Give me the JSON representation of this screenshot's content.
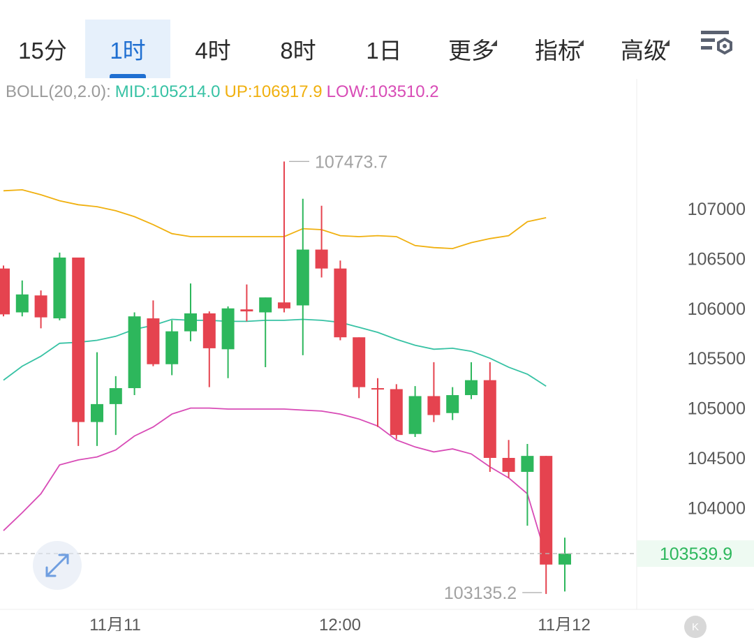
{
  "tabs": [
    {
      "label": "15分",
      "active": false,
      "menu": false
    },
    {
      "label": "1时",
      "active": true,
      "menu": false
    },
    {
      "label": "4时",
      "active": false,
      "menu": false
    },
    {
      "label": "8时",
      "active": false,
      "menu": false
    },
    {
      "label": "1日",
      "active": false,
      "menu": false
    },
    {
      "label": "更多",
      "active": false,
      "menu": true
    },
    {
      "label": "指标",
      "active": false,
      "menu": true
    },
    {
      "label": "高级",
      "active": false,
      "menu": true
    }
  ],
  "settings_icon": "chart-settings-icon",
  "expand_icon": "expand-arrows-icon",
  "badge_label": "K",
  "legend": {
    "name": "BOLL(20,2.0):",
    "mid": "MID:105214.0",
    "up": "UP:106917.9",
    "low": "LOW:103510.2"
  },
  "colors": {
    "up_candle": "#2db75c",
    "down_candle": "#e5434f",
    "mid": "#37c2a4",
    "up_band": "#f0b00f",
    "low_band": "#d84bb6",
    "active_tab": "#1f6fd1",
    "price_tag": "#2db75c"
  },
  "chart_data": {
    "type": "candlestick",
    "title": "",
    "y_ticks": [
      "107000",
      "106500",
      "106000",
      "105500",
      "105000",
      "104500",
      "104000"
    ],
    "x_ticks": [
      "11月11",
      "12:00",
      "11月12"
    ],
    "ylim": [
      102950,
      108250
    ],
    "last_price": "103539.9",
    "high_label": "107473.7",
    "high_value": 107473.7,
    "low_label": "103135.2",
    "low_value": 103135.2,
    "grid": false,
    "candles": [
      {
        "o": 106400,
        "h": 106430,
        "l": 105920,
        "c": 105940
      },
      {
        "o": 105960,
        "h": 106280,
        "l": 105920,
        "c": 106140
      },
      {
        "o": 106130,
        "h": 106180,
        "l": 105800,
        "c": 105910
      },
      {
        "o": 105900,
        "h": 106560,
        "l": 105880,
        "c": 106510
      },
      {
        "o": 106510,
        "h": 106510,
        "l": 104620,
        "c": 104860
      },
      {
        "o": 104860,
        "h": 105560,
        "l": 104620,
        "c": 105040
      },
      {
        "o": 105040,
        "h": 105320,
        "l": 104730,
        "c": 105200
      },
      {
        "o": 105200,
        "h": 105960,
        "l": 105130,
        "c": 105920
      },
      {
        "o": 105900,
        "h": 106080,
        "l": 105420,
        "c": 105440
      },
      {
        "o": 105440,
        "h": 105880,
        "l": 105330,
        "c": 105770
      },
      {
        "o": 105770,
        "h": 106250,
        "l": 105670,
        "c": 105950
      },
      {
        "o": 105950,
        "h": 105970,
        "l": 105210,
        "c": 105600
      },
      {
        "o": 105590,
        "h": 106020,
        "l": 105300,
        "c": 106000
      },
      {
        "o": 105990,
        "h": 106240,
        "l": 105870,
        "c": 105970
      },
      {
        "o": 105960,
        "h": 106110,
        "l": 105410,
        "c": 106110
      },
      {
        "o": 106060,
        "h": 107473.7,
        "l": 105960,
        "c": 106000
      },
      {
        "o": 106030,
        "h": 107100,
        "l": 105530,
        "c": 106590
      },
      {
        "o": 106590,
        "h": 107030,
        "l": 106310,
        "c": 106400
      },
      {
        "o": 106400,
        "h": 106480,
        "l": 105680,
        "c": 105710
      },
      {
        "o": 105710,
        "h": 105710,
        "l": 105100,
        "c": 105210
      },
      {
        "o": 105200,
        "h": 105300,
        "l": 104810,
        "c": 105190
      },
      {
        "o": 105190,
        "h": 105240,
        "l": 104690,
        "c": 104730
      },
      {
        "o": 104740,
        "h": 105220,
        "l": 104710,
        "c": 105120
      },
      {
        "o": 105120,
        "h": 105460,
        "l": 104860,
        "c": 104930
      },
      {
        "o": 104950,
        "h": 105210,
        "l": 104880,
        "c": 105130
      },
      {
        "o": 105130,
        "h": 105460,
        "l": 105090,
        "c": 105280
      },
      {
        "o": 105280,
        "h": 105460,
        "l": 104360,
        "c": 104500
      },
      {
        "o": 104500,
        "h": 104680,
        "l": 104300,
        "c": 104360
      },
      {
        "o": 104360,
        "h": 104640,
        "l": 103820,
        "c": 104520
      },
      {
        "o": 104520,
        "h": 104520,
        "l": 103135.2,
        "c": 103430
      },
      {
        "o": 103430,
        "h": 103700,
        "l": 103160,
        "c": 103539.9
      }
    ],
    "series": [
      {
        "name": "UP",
        "values": [
          107180,
          107190,
          107140,
          107080,
          107040,
          107020,
          106980,
          106920,
          106840,
          106750,
          106720,
          106720,
          106720,
          106720,
          106720,
          106720,
          106800,
          106790,
          106730,
          106720,
          106730,
          106720,
          106630,
          106610,
          106600,
          106660,
          106700,
          106730,
          106870,
          106910
        ]
      },
      {
        "name": "MID",
        "values": [
          105280,
          105420,
          105520,
          105650,
          105660,
          105680,
          105720,
          105790,
          105830,
          105890,
          105880,
          105880,
          105870,
          105870,
          105880,
          105880,
          105890,
          105880,
          105860,
          105810,
          105760,
          105690,
          105630,
          105590,
          105600,
          105570,
          105500,
          105410,
          105340,
          105220
        ]
      },
      {
        "name": "LOW",
        "values": [
          103770,
          103950,
          104140,
          104430,
          104480,
          104510,
          104580,
          104720,
          104810,
          104940,
          105000,
          105000,
          104990,
          104990,
          104990,
          104990,
          104980,
          104970,
          104940,
          104890,
          104820,
          104680,
          104610,
          104560,
          104590,
          104540,
          104410,
          104300,
          104140,
          103510
        ]
      }
    ]
  }
}
